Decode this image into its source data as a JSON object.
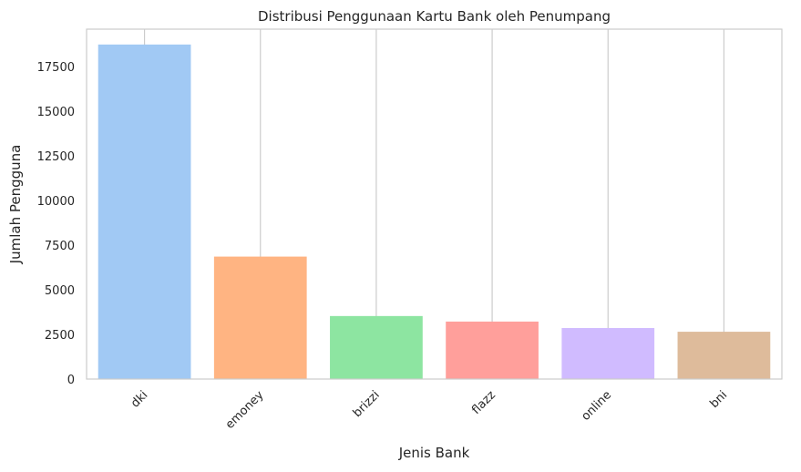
{
  "chart_data": {
    "type": "bar",
    "title": "Distribusi Penggunaan Kartu Bank oleh Penumpang",
    "xlabel": "Jenis Bank",
    "ylabel": "Jumlah Pengguna",
    "categories": [
      "dki",
      "emoney",
      "brizzi",
      "flazz",
      "online",
      "bni"
    ],
    "values": [
      18740,
      6860,
      3530,
      3220,
      2860,
      2650
    ],
    "colors": [
      "#a1c9f4",
      "#ffb482",
      "#8de5a1",
      "#ff9f9b",
      "#d0bbff",
      "#debb9b"
    ],
    "ylim": [
      0,
      19600
    ],
    "yticks": [
      0,
      2500,
      5000,
      7500,
      10000,
      12500,
      15000,
      17500
    ],
    "grid": "vertical",
    "xtick_rotation": 45
  }
}
